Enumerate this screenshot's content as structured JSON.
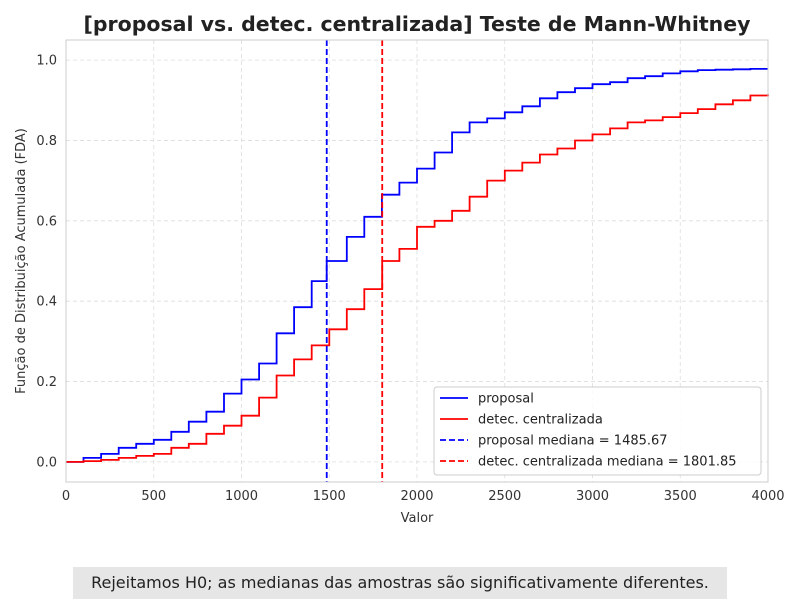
{
  "chart_data": {
    "type": "line",
    "title": "[proposal vs. detec. centralizada] Teste de Mann-Whitney",
    "xlabel": "Valor",
    "ylabel": "Função de Distribuição Acumulada (FDA)",
    "xlim": [
      0,
      4000
    ],
    "ylim": [
      -0.05,
      1.05
    ],
    "xticks": [
      0,
      500,
      1000,
      1500,
      2000,
      2500,
      3000,
      3500,
      4000
    ],
    "yticks": [
      0.0,
      0.2,
      0.4,
      0.6,
      0.8,
      1.0
    ],
    "grid": true,
    "legend_position": "lower-right",
    "series": [
      {
        "name": "proposal",
        "color": "#0000ff",
        "style": "solid",
        "x": [
          0,
          100,
          200,
          300,
          400,
          500,
          600,
          700,
          800,
          900,
          1000,
          1100,
          1200,
          1300,
          1400,
          1485.67,
          1600,
          1700,
          1800,
          1900,
          2000,
          2100,
          2200,
          2300,
          2400,
          2500,
          2600,
          2700,
          2800,
          2900,
          3000,
          3100,
          3200,
          3300,
          3400,
          3500,
          3600,
          3700,
          3800,
          3900,
          4000
        ],
        "y": [
          0.0,
          0.01,
          0.02,
          0.035,
          0.045,
          0.055,
          0.075,
          0.1,
          0.125,
          0.17,
          0.205,
          0.245,
          0.32,
          0.385,
          0.45,
          0.5,
          0.56,
          0.61,
          0.665,
          0.695,
          0.73,
          0.77,
          0.82,
          0.845,
          0.855,
          0.87,
          0.885,
          0.905,
          0.92,
          0.93,
          0.94,
          0.945,
          0.955,
          0.96,
          0.967,
          0.972,
          0.975,
          0.976,
          0.977,
          0.978,
          0.978
        ]
      },
      {
        "name": "detec. centralizada",
        "color": "#ff0000",
        "style": "solid",
        "x": [
          0,
          100,
          200,
          300,
          400,
          500,
          600,
          700,
          800,
          900,
          1000,
          1100,
          1200,
          1300,
          1400,
          1500,
          1600,
          1700,
          1801.85,
          1900,
          2000,
          2100,
          2200,
          2300,
          2400,
          2500,
          2600,
          2700,
          2800,
          2900,
          3000,
          3100,
          3200,
          3300,
          3400,
          3500,
          3600,
          3700,
          3800,
          3900,
          4000
        ],
        "y": [
          0.0,
          0.002,
          0.005,
          0.01,
          0.015,
          0.02,
          0.035,
          0.045,
          0.07,
          0.09,
          0.115,
          0.16,
          0.215,
          0.255,
          0.29,
          0.33,
          0.38,
          0.43,
          0.5,
          0.53,
          0.585,
          0.6,
          0.625,
          0.66,
          0.7,
          0.725,
          0.745,
          0.765,
          0.78,
          0.8,
          0.815,
          0.83,
          0.845,
          0.85,
          0.858,
          0.868,
          0.878,
          0.89,
          0.9,
          0.912,
          0.915
        ]
      }
    ],
    "vlines": [
      {
        "name": "proposal mediana = 1485.67",
        "x": 1485.67,
        "color": "#0000ff",
        "style": "dashed"
      },
      {
        "name": "detec. centralizada mediana = 1801.85",
        "x": 1801.85,
        "color": "#ff0000",
        "style": "dashed"
      }
    ]
  },
  "conclusion": "Rejeitamos H0; as medianas das amostras são significativamente diferentes."
}
